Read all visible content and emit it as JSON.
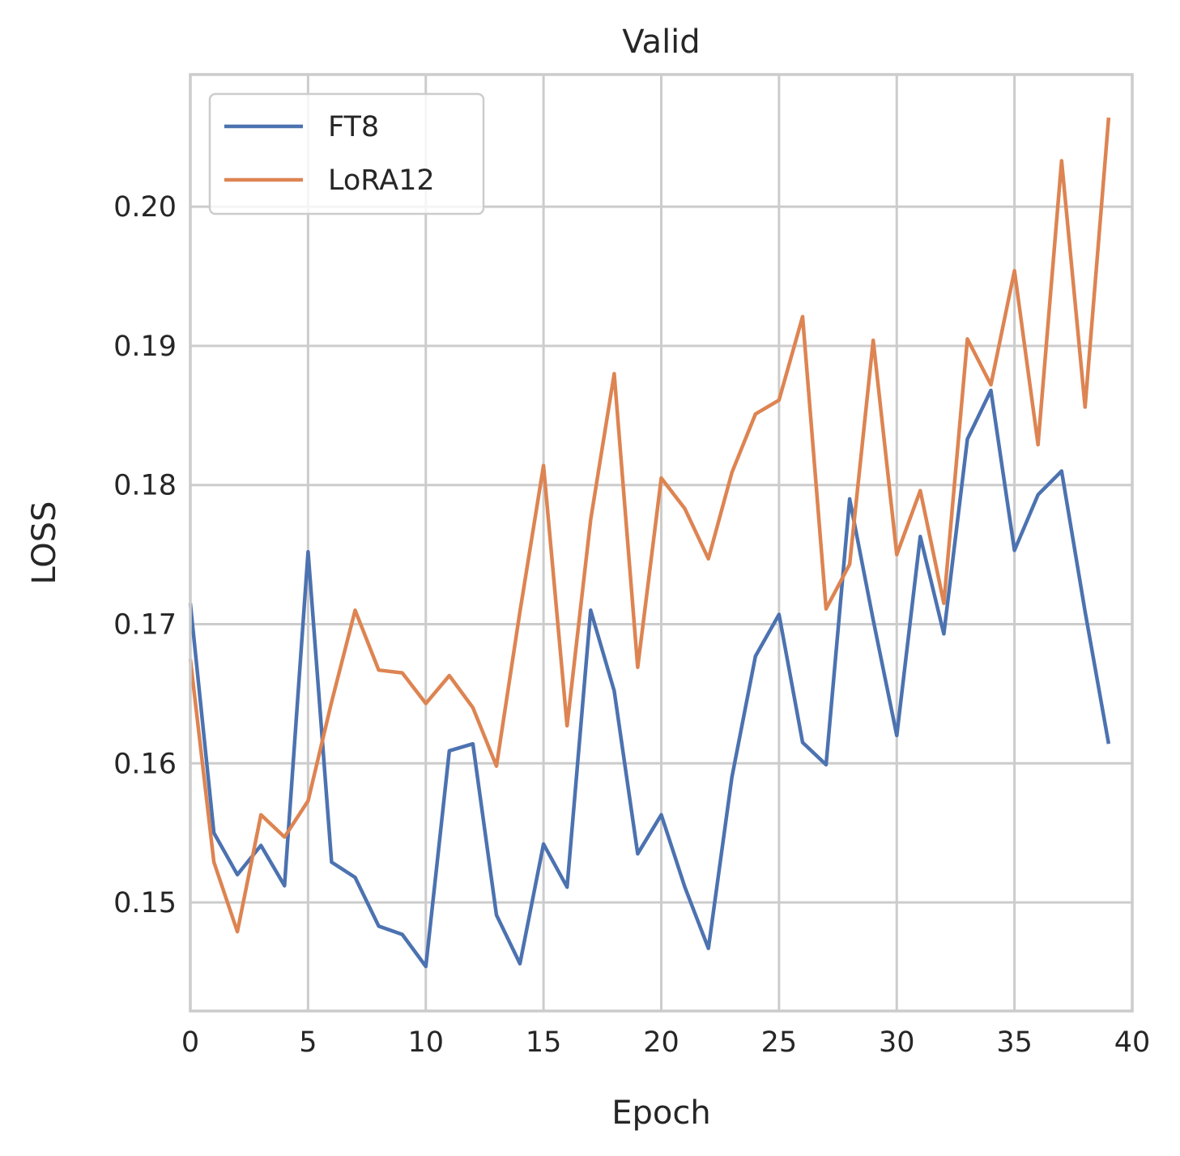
{
  "chart_data": {
    "type": "line",
    "title": "Valid",
    "xlabel": "Epoch",
    "ylabel": "LOSS",
    "xlim": [
      0,
      40
    ],
    "ylim": [
      0.1422,
      0.2095
    ],
    "xticks": [
      0,
      5,
      10,
      15,
      20,
      25,
      30,
      35,
      40
    ],
    "yticks": [
      0.15,
      0.16,
      0.17,
      0.18,
      0.19,
      0.2
    ],
    "ytick_labels": [
      "0.15",
      "0.16",
      "0.17",
      "0.18",
      "0.19",
      "0.20"
    ],
    "xtick_labels": [
      "0",
      "5",
      "10",
      "15",
      "20",
      "25",
      "30",
      "35",
      "40"
    ],
    "grid": true,
    "legend_position": "top-left",
    "x": [
      0,
      1,
      2,
      3,
      4,
      5,
      6,
      7,
      8,
      9,
      10,
      11,
      12,
      13,
      14,
      15,
      16,
      17,
      18,
      19,
      20,
      21,
      22,
      23,
      24,
      25,
      26,
      27,
      28,
      29,
      30,
      31,
      32,
      33,
      34,
      35,
      36,
      37,
      38,
      39
    ],
    "series": [
      {
        "name": "FT8",
        "color": "#4c72b0",
        "values": [
          0.1715,
          0.155,
          0.152,
          0.1541,
          0.1512,
          0.1752,
          0.1529,
          0.1518,
          0.1483,
          0.1477,
          0.1454,
          0.1609,
          0.1614,
          0.1491,
          0.1456,
          0.1542,
          0.1511,
          0.171,
          0.1652,
          0.1535,
          0.1563,
          0.1511,
          0.1467,
          0.159,
          0.1677,
          0.1707,
          0.1615,
          0.1599,
          0.179,
          0.1703,
          0.162,
          0.1763,
          0.1693,
          0.1833,
          0.1868,
          0.1753,
          0.1793,
          0.181,
          0.1709,
          0.1614
        ]
      },
      {
        "name": "LoRA12",
        "color": "#dd8452",
        "values": [
          0.1675,
          0.1529,
          0.1479,
          0.1563,
          0.1547,
          0.1573,
          0.1644,
          0.171,
          0.1667,
          0.1665,
          0.1643,
          0.1663,
          0.164,
          0.1598,
          0.1709,
          0.1814,
          0.1627,
          0.1775,
          0.188,
          0.1669,
          0.1805,
          0.1783,
          0.1747,
          0.1809,
          0.1851,
          0.1861,
          0.1921,
          0.1711,
          0.1743,
          0.1904,
          0.175,
          0.1796,
          0.1715,
          0.1905,
          0.1872,
          0.1954,
          0.1829,
          0.2033,
          0.1856,
          0.2064
        ]
      }
    ]
  }
}
